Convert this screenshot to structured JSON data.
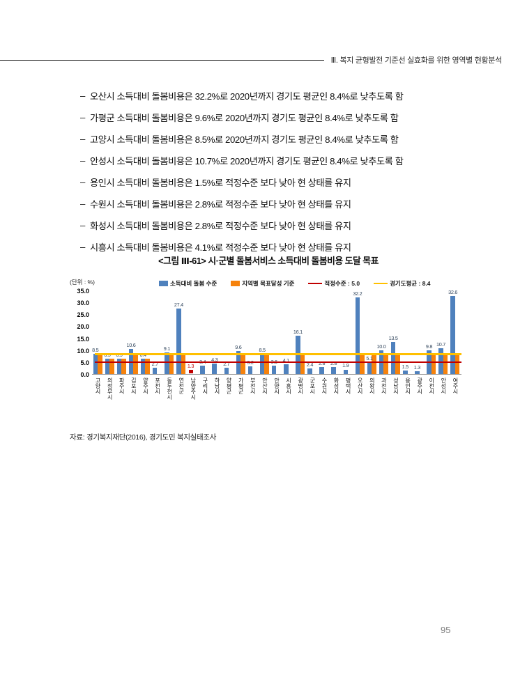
{
  "page": {
    "header": "Ⅲ. 복지 균형발전 기준선 실효화를 위한 영역별 현황분석",
    "number": "95"
  },
  "bullets": {
    "marker": "–",
    "items": [
      "오산시 소득대비 돌봄비용은 32.2%로 2020년까지 경기도 평균인 8.4%로 낮추도록 함",
      "가평군 소득대비 돌봄비용은 9.6%로 2020년까지 경기도 평균인 8.4%로 낮추도록 함",
      "고양시 소득대비 돌봄비용은 8.5%로 2020년까지 경기도 평균인 8.4%로 낮추도록 함",
      "안성시 소득대비 돌봄비용은 10.7%로 2020년까지 경기도 평균인 8.4%로 낮추도록 함",
      "용인시 소득대비 돌봄비용은 1.5%로 적정수준 보다 낮아 현 상태를 유지",
      "수원시 소득대비 돌봄비용은 2.8%로 적정수준 보다 낮아 현 상태를 유지",
      "화성시 소득대비 돌봄비용은 2.8%로 적정수준 보다 낮아 현 상태를 유지",
      "시흥시 소득대비 돌봄비용은 4.1%로 적정수준 보다 낮아 현 상태를 유지"
    ]
  },
  "figure": {
    "title": "<그림 Ⅲ-61> 시·군별 돌봄서비스 소득대비 돌봄비용 도달 목표",
    "source": "자료: 경기복지재단(2016), 경기도민 복지실태조사"
  },
  "chart_data": {
    "type": "bar",
    "title": "시·군별 돌봄서비스 소득대비 돌봄비용 도달 목표",
    "unit_label": "(단위 : %)",
    "ylim": [
      0,
      35
    ],
    "ytick_step": 5,
    "grid": false,
    "legend_position": "top",
    "categories": [
      "고양시",
      "의정부시",
      "파주시",
      "김포시",
      "양주시",
      "포천시",
      "동두천시",
      "연천군",
      "남양주시",
      "구리시",
      "하남시",
      "양평군",
      "가평군",
      "부천시",
      "안산시",
      "안양시",
      "시흥시",
      "광명시",
      "군포시",
      "수원시",
      "화성시",
      "평택시",
      "오산시",
      "의왕시",
      "과천시",
      "성남시",
      "용인시",
      "광주시",
      "이천시",
      "안성시",
      "여주시"
    ],
    "series": [
      {
        "name": "소득대비 돌봄 수준",
        "color": "#4F81BD",
        "values": [
          8.5,
          6.5,
          6.5,
          10.6,
          6.4,
          2.7,
          9.1,
          27.4,
          1.3,
          3.4,
          4.3,
          2.7,
          9.6,
          3.2,
          8.5,
          3.6,
          4.1,
          16.1,
          2.4,
          2.8,
          2.8,
          1.9,
          32.2,
          5.1,
          10.0,
          13.5,
          1.5,
          1.3,
          9.8,
          10.7,
          32.6
        ]
      },
      {
        "name": "지역별 목표달성 기준",
        "color": "#F6820C",
        "values": [
          8.4,
          6.5,
          6.5,
          8.4,
          6.4,
          null,
          8.4,
          8.4,
          null,
          null,
          null,
          null,
          8.4,
          null,
          8.4,
          null,
          null,
          8.4,
          null,
          null,
          null,
          null,
          8.4,
          8.4,
          8.4,
          8.4,
          null,
          null,
          8.4,
          8.4,
          8.4
        ]
      }
    ],
    "ref_lines": [
      {
        "name": "적정수준 : 5.0",
        "value": 5.0,
        "color": "#C00000"
      },
      {
        "name": "경기도평균 : 8.4",
        "value": 8.4,
        "color": "#FFC000"
      }
    ],
    "highlight_index": 8,
    "highlight_color": "#C00000",
    "value_label_color": "#33475e",
    "legend": [
      {
        "label": "소득대비 돌봄 수준",
        "swatch": "box",
        "color": "#4F81BD"
      },
      {
        "label": "지역별 목표달성 기준",
        "swatch": "box",
        "color": "#F6820C"
      },
      {
        "label": "적정수준 : 5.0",
        "swatch": "line",
        "color": "#C00000"
      },
      {
        "label": "경기도평균 : 8.4",
        "swatch": "line",
        "color": "#FFC000"
      }
    ]
  }
}
